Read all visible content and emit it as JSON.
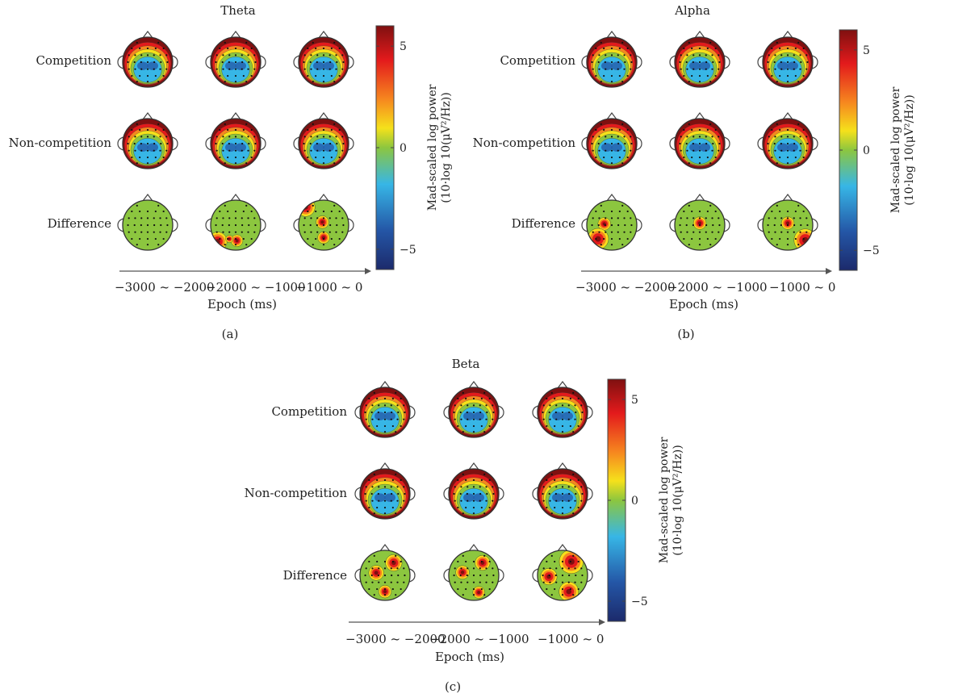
{
  "panels": [
    {
      "id": "a",
      "title": "Theta",
      "sublabel": "(a)",
      "rows": [
        "Competition",
        "Non-competition",
        "Difference"
      ],
      "epochs": [
        "−3000 ~ −2000",
        "−2000 ~ −1000",
        "−1000 ~ 0"
      ],
      "xlabel": "Epoch (ms)",
      "colorbar_ticks": [
        "5",
        "0",
        "−5"
      ],
      "colorbar_label_line1": "Mad-scaled log power",
      "colorbar_label_line2": "(10·log 10(μV²/Hz))"
    },
    {
      "id": "b",
      "title": "Alpha",
      "sublabel": "(b)",
      "rows": [
        "Competition",
        "Non-competition",
        "Difference"
      ],
      "epochs": [
        "−3000 ~ −2000",
        "−2000 ~ −1000",
        "−1000 ~ 0"
      ],
      "xlabel": "Epoch (ms)",
      "colorbar_ticks": [
        "5",
        "0",
        "−5"
      ],
      "colorbar_label_line1": "Mad-scaled log power",
      "colorbar_label_line2": "(10·log 10(μV²/Hz))"
    },
    {
      "id": "c",
      "title": "Beta",
      "sublabel": "(c)",
      "rows": [
        "Competition",
        "Non-competition",
        "Difference"
      ],
      "epochs": [
        "−3000 ~ −2000",
        "−2000 ~ −1000",
        "−1000 ~ 0"
      ],
      "xlabel": "Epoch (ms)",
      "colorbar_ticks": [
        "5",
        "0",
        "−5"
      ],
      "colorbar_label_line1": "Mad-scaled log power",
      "colorbar_label_line2": "(10·log 10(μV²/Hz))"
    }
  ],
  "colors": {
    "dark_red": "#7f1010",
    "red": "#e31a1c",
    "orange": "#f6861f",
    "yellow": "#f5e11b",
    "green": "#8cc63f",
    "cyan": "#37b6e6",
    "blue": "#2456a6",
    "dark_blue": "#1c2a6b"
  }
}
